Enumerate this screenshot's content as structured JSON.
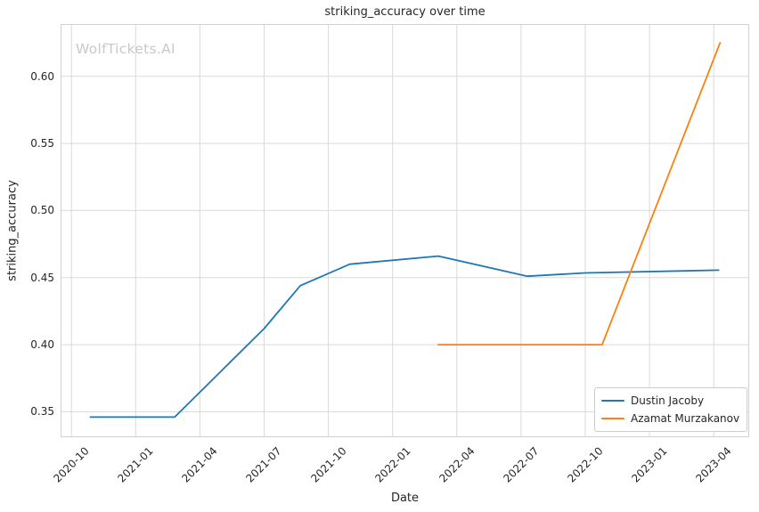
{
  "chart_data": {
    "type": "line",
    "title": "striking_accuracy over time",
    "xlabel": "Date",
    "ylabel": "striking_accuracy",
    "watermark": "WolfTickets.AI",
    "grid": true,
    "legend_position": "lower right",
    "x_tick_labels": [
      "2020-10",
      "2021-01",
      "2021-04",
      "2021-07",
      "2021-10",
      "2022-01",
      "2022-04",
      "2022-07",
      "2022-10",
      "2023-01",
      "2023-04"
    ],
    "y_tick_labels": [
      "0.35",
      "0.40",
      "0.45",
      "0.50",
      "0.55",
      "0.60"
    ],
    "xlim": [
      "2020-09-16",
      "2023-05-21"
    ],
    "ylim": [
      0.331,
      0.639
    ],
    "series": [
      {
        "name": "Dustin Jacoby",
        "color": "#1f77b4",
        "points": [
          {
            "date": "2020-10-28",
            "value": 0.346
          },
          {
            "date": "2021-02-26",
            "value": 0.346
          },
          {
            "date": "2021-07-01",
            "value": 0.412
          },
          {
            "date": "2021-08-22",
            "value": 0.444
          },
          {
            "date": "2021-11-01",
            "value": 0.46
          },
          {
            "date": "2022-03-05",
            "value": 0.466
          },
          {
            "date": "2022-07-10",
            "value": 0.451
          },
          {
            "date": "2022-10-01",
            "value": 0.4535
          },
          {
            "date": "2023-04-08",
            "value": 0.4555
          }
        ]
      },
      {
        "name": "Azamat Murzakanov",
        "color": "#ff7f0e",
        "points": [
          {
            "date": "2022-03-05",
            "value": 0.4
          },
          {
            "date": "2022-10-25",
            "value": 0.4
          },
          {
            "date": "2023-04-10",
            "value": 0.625
          }
        ]
      }
    ]
  },
  "colors": {
    "background": "#ffffff",
    "grid": "#d9d9d9",
    "spine": "#d0d0d0",
    "text": "#262626",
    "watermark": "#c9c9c9",
    "legend_border": "#cccccc"
  }
}
